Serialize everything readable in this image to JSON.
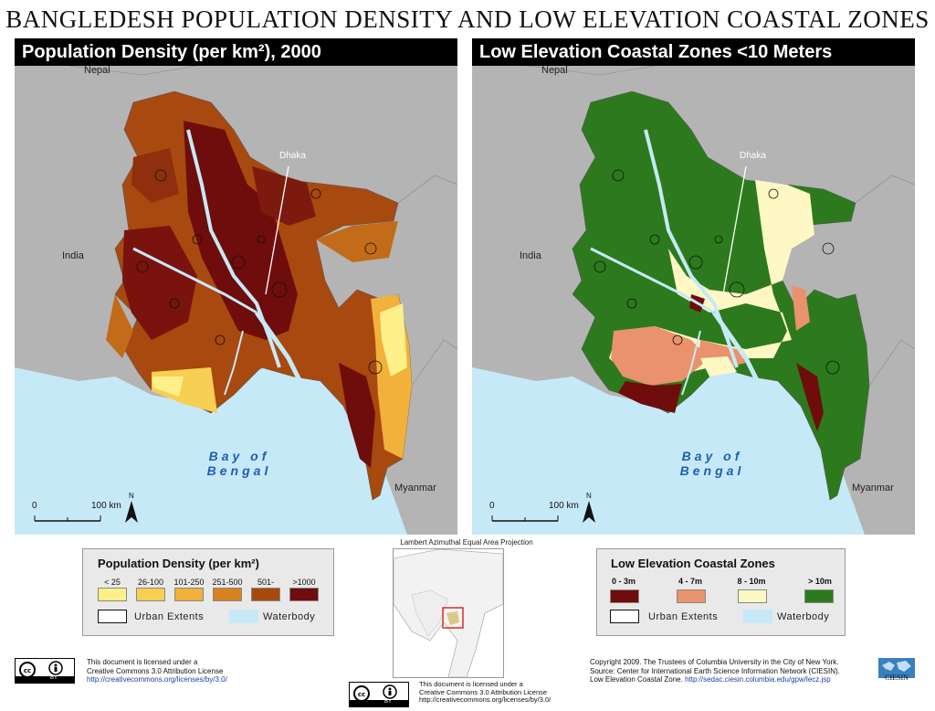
{
  "title": "BANGLEDESH POPULATION DENSITY AND LOW ELEVATION COASTAL ZONES",
  "left_map": {
    "header": "Population Density (per km²), 2000",
    "labels": {
      "nepal": "Nepal",
      "india": "India",
      "dhaka": "Dhaka",
      "myanmar": "Myanmar",
      "bay_line1": "Bay of",
      "bay_line2": "Bengal"
    },
    "scale": {
      "zero": "0",
      "end": "100 km",
      "north": "N"
    }
  },
  "right_map": {
    "header": "Low Elevation Coastal Zones <10 Meters",
    "labels": {
      "nepal": "Nepal",
      "india": "India",
      "dhaka": "Dhaka",
      "myanmar": "Myanmar",
      "bay_line1": "Bay of",
      "bay_line2": "Bengal"
    },
    "scale": {
      "zero": "0",
      "end": "100 km",
      "north": "N"
    }
  },
  "projection": "Lambert Azimuthal Equal Area Projection",
  "legend_density": {
    "title": "Population Density (per km²)",
    "classes": [
      {
        "label": "< 25",
        "color": "#fdf089"
      },
      {
        "label": "26-100",
        "color": "#f7cf52"
      },
      {
        "label": "101-250",
        "color": "#f2b13a"
      },
      {
        "label": "251-500",
        "color": "#d7831f"
      },
      {
        "label": "501-1000",
        "color": "#a8490f"
      },
      {
        "label": ">1000",
        "color": "#6e0d0b"
      }
    ],
    "urban": "Urban Extents",
    "water": "Waterbody",
    "water_color": "#c6e9f8"
  },
  "legend_lecz": {
    "title": "Low Elevation Coastal Zones",
    "classes": [
      {
        "label": "0 - 3m",
        "color": "#6e0d0b"
      },
      {
        "label": "4 - 7m",
        "color": "#e9926b"
      },
      {
        "label": "8 - 10m",
        "color": "#fff8c4"
      },
      {
        "label": "> 10m",
        "color": "#2c7a1d"
      }
    ],
    "urban": "Urban Extents",
    "water": "Waterbody"
  },
  "license_left": {
    "line1": "This document is licensed under a",
    "line2": "Creative Commons 3.0 Attribution License",
    "url": "http://creativecommons.org/licenses/by/3.0/",
    "badge": "BY"
  },
  "license_center": {
    "line1": "This document is licensed under a",
    "line2": "Creative Commons 3.0 Attribution License",
    "url": "http://creativecommons.org/licenses/by/3.0/",
    "badge": "BY"
  },
  "copyright": {
    "line1": "Copyright 2009. The Trustees of Columbia University in the City of New York.",
    "line2": "Source: Center for International Earth Science Information Network (CIESIN).",
    "line3_text": "Low Elevation Coastal Zone.",
    "line3_url": "http://sedac.ciesin.columbia.edu/gpw/lecz.jsp",
    "logo": "CIESIN"
  },
  "colors": {
    "land_outside": "#b4b4b4",
    "water": "#c6e9f8",
    "header_bg": "#000000"
  }
}
